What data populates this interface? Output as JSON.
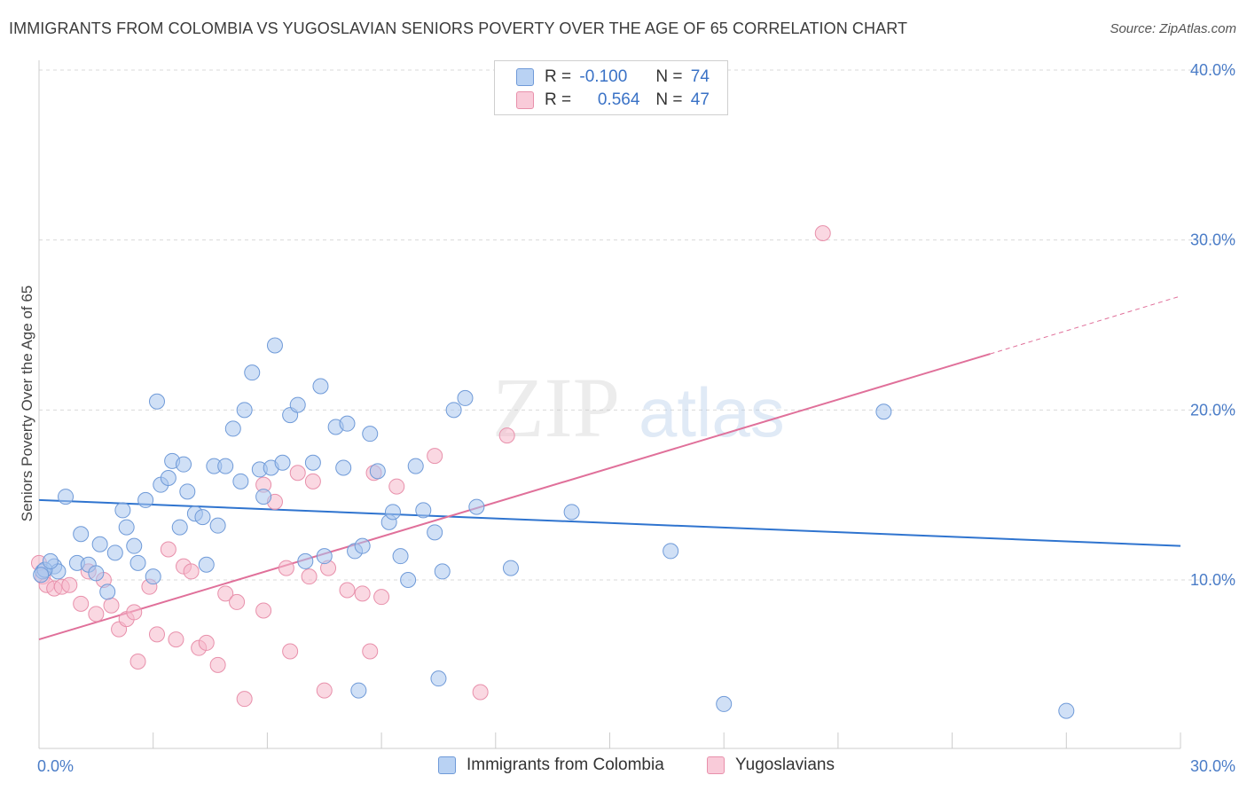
{
  "header": {
    "title": "IMMIGRANTS FROM COLOMBIA VS YUGOSLAVIAN SENIORS POVERTY OVER THE AGE OF 65 CORRELATION CHART",
    "source": "Source: ZipAtlas.com"
  },
  "watermark": {
    "zip": "ZIP",
    "atlas": "atlas"
  },
  "legend": {
    "rows": [
      {
        "r_label": "R =",
        "r_value": "-0.100",
        "n_label": "N =",
        "n_value": "74"
      },
      {
        "r_label": "R =",
        "r_value": "0.564",
        "n_label": "N =",
        "n_value": "47"
      }
    ]
  },
  "bottom_legend": {
    "series1": "Immigrants from Colombia",
    "series2": "Yugoslavians"
  },
  "colors": {
    "blue_fill": "#a9c7ef",
    "blue_stroke": "#6f9ad8",
    "blue_line": "#2f74cf",
    "pink_fill": "#f5b8cb",
    "pink_stroke": "#e890ab",
    "pink_line": "#e0709a",
    "grid": "#d9d9d9",
    "axis_text": "#4a7cc7"
  },
  "chart_data": {
    "type": "scatter",
    "title": "IMMIGRANTS FROM COLOMBIA VS YUGOSLAVIAN SENIORS POVERTY OVER THE AGE OF 65 CORRELATION CHART",
    "xlabel": "",
    "ylabel": "Seniors Poverty Over the Age of 65",
    "xlim": [
      0,
      30
    ],
    "ylim": [
      0,
      40
    ],
    "x_tick_labels": [
      "0.0%",
      "30.0%"
    ],
    "y_ticks": [
      10,
      20,
      30,
      40
    ],
    "y_tick_labels": [
      "10.0%",
      "20.0%",
      "30.0%",
      "40.0%"
    ],
    "series": [
      {
        "name": "Immigrants from Colombia",
        "R": -0.1,
        "N": 74,
        "trend": {
          "x": [
            0,
            30
          ],
          "y": [
            14.7,
            12.0
          ]
        },
        "points": [
          [
            0.1,
            10.5
          ],
          [
            0.4,
            10.8
          ],
          [
            0.5,
            10.5
          ],
          [
            0.7,
            14.9
          ],
          [
            1.0,
            11.0
          ],
          [
            1.1,
            12.7
          ],
          [
            1.3,
            10.9
          ],
          [
            1.5,
            10.4
          ],
          [
            1.6,
            12.1
          ],
          [
            1.8,
            9.3
          ],
          [
            2.0,
            11.6
          ],
          [
            2.2,
            14.1
          ],
          [
            2.3,
            13.1
          ],
          [
            2.5,
            12.0
          ],
          [
            2.6,
            11.0
          ],
          [
            2.8,
            14.7
          ],
          [
            3.0,
            10.2
          ],
          [
            3.1,
            20.5
          ],
          [
            3.2,
            15.6
          ],
          [
            3.4,
            16.0
          ],
          [
            3.5,
            17.0
          ],
          [
            3.7,
            13.1
          ],
          [
            3.8,
            16.8
          ],
          [
            3.9,
            15.2
          ],
          [
            4.1,
            13.9
          ],
          [
            4.3,
            13.7
          ],
          [
            4.4,
            10.9
          ],
          [
            4.6,
            16.7
          ],
          [
            4.7,
            13.2
          ],
          [
            4.9,
            16.7
          ],
          [
            5.1,
            18.9
          ],
          [
            5.3,
            15.8
          ],
          [
            5.4,
            20.0
          ],
          [
            5.6,
            22.2
          ],
          [
            5.8,
            16.5
          ],
          [
            5.9,
            14.9
          ],
          [
            6.1,
            16.6
          ],
          [
            6.2,
            23.8
          ],
          [
            6.4,
            16.9
          ],
          [
            6.6,
            19.7
          ],
          [
            6.8,
            20.3
          ],
          [
            7.0,
            11.1
          ],
          [
            7.2,
            16.9
          ],
          [
            7.4,
            21.4
          ],
          [
            7.5,
            11.4
          ],
          [
            7.8,
            19.0
          ],
          [
            8.0,
            16.6
          ],
          [
            8.1,
            19.2
          ],
          [
            8.3,
            11.7
          ],
          [
            8.5,
            12.0
          ],
          [
            8.7,
            18.6
          ],
          [
            8.9,
            16.4
          ],
          [
            9.2,
            13.4
          ],
          [
            9.3,
            14.0
          ],
          [
            9.5,
            11.4
          ],
          [
            9.7,
            10.0
          ],
          [
            9.9,
            16.7
          ],
          [
            10.1,
            14.1
          ],
          [
            10.4,
            12.8
          ],
          [
            10.6,
            10.5
          ],
          [
            10.9,
            20.0
          ],
          [
            11.2,
            20.7
          ],
          [
            11.5,
            14.3
          ],
          [
            12.4,
            10.7
          ],
          [
            14.0,
            14.0
          ],
          [
            16.6,
            11.7
          ],
          [
            22.2,
            19.9
          ],
          [
            27.0,
            2.3
          ],
          [
            18.0,
            2.7
          ],
          [
            8.4,
            3.5
          ],
          [
            10.5,
            4.2
          ],
          [
            0.15,
            10.6
          ],
          [
            0.3,
            11.1
          ],
          [
            0.05,
            10.3
          ]
        ]
      },
      {
        "name": "Yugoslavians",
        "R": 0.564,
        "N": 47,
        "trend": {
          "x": [
            0,
            25.0
          ],
          "y": [
            6.5,
            23.3
          ],
          "dashed_to": {
            "x": 30,
            "y": 26.7
          }
        },
        "points": [
          [
            0.1,
            10.2
          ],
          [
            0.2,
            9.7
          ],
          [
            0.4,
            9.5
          ],
          [
            0.6,
            9.6
          ],
          [
            0.8,
            9.7
          ],
          [
            1.1,
            8.6
          ],
          [
            1.3,
            10.5
          ],
          [
            1.5,
            8.0
          ],
          [
            1.7,
            10.0
          ],
          [
            1.9,
            8.5
          ],
          [
            2.1,
            7.1
          ],
          [
            2.3,
            7.7
          ],
          [
            2.5,
            8.1
          ],
          [
            2.6,
            5.2
          ],
          [
            2.9,
            9.6
          ],
          [
            3.1,
            6.8
          ],
          [
            3.4,
            11.8
          ],
          [
            3.6,
            6.5
          ],
          [
            3.8,
            10.8
          ],
          [
            4.0,
            10.5
          ],
          [
            4.2,
            6.0
          ],
          [
            4.4,
            6.3
          ],
          [
            4.7,
            5.0
          ],
          [
            4.9,
            9.2
          ],
          [
            5.2,
            8.7
          ],
          [
            5.4,
            3.0
          ],
          [
            5.9,
            8.2
          ],
          [
            5.9,
            15.6
          ],
          [
            6.2,
            14.6
          ],
          [
            6.5,
            10.7
          ],
          [
            6.6,
            5.8
          ],
          [
            6.8,
            16.3
          ],
          [
            7.1,
            10.2
          ],
          [
            7.2,
            15.8
          ],
          [
            7.5,
            3.5
          ],
          [
            7.6,
            10.7
          ],
          [
            8.1,
            9.4
          ],
          [
            8.5,
            9.2
          ],
          [
            8.7,
            5.8
          ],
          [
            8.8,
            16.3
          ],
          [
            9.0,
            9.0
          ],
          [
            9.4,
            15.5
          ],
          [
            10.4,
            17.3
          ],
          [
            11.6,
            3.4
          ],
          [
            12.3,
            18.5
          ],
          [
            20.6,
            30.4
          ],
          [
            0.0,
            11.0
          ]
        ]
      }
    ]
  }
}
